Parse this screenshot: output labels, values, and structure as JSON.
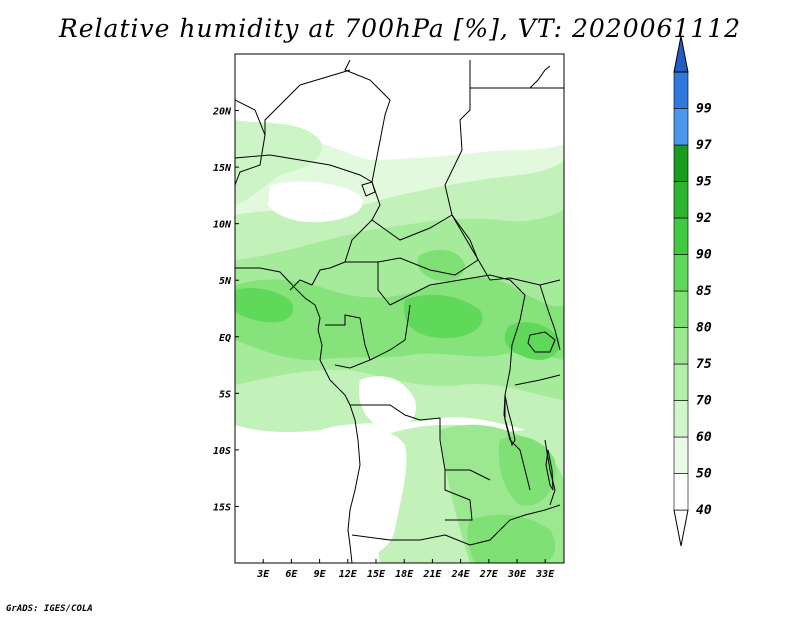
{
  "title": "Relative humidity at 700hPa [%], VT: 2020061112",
  "credit": "GrADS: IGES/COLA",
  "map": {
    "lon_range": [
      0,
      35
    ],
    "lat_range": [
      -20,
      25
    ],
    "lat_ticks": [
      {
        "value": 20,
        "label": "20N"
      },
      {
        "value": 15,
        "label": "15N"
      },
      {
        "value": 10,
        "label": "10N"
      },
      {
        "value": 5,
        "label": "5N"
      },
      {
        "value": 0,
        "label": "EQ"
      },
      {
        "value": -5,
        "label": "5S"
      },
      {
        "value": -10,
        "label": "10S"
      },
      {
        "value": -15,
        "label": "15S"
      }
    ],
    "lon_ticks": [
      {
        "value": 3,
        "label": "3E"
      },
      {
        "value": 6,
        "label": "6E"
      },
      {
        "value": 9,
        "label": "9E"
      },
      {
        "value": 12,
        "label": "12E"
      },
      {
        "value": 15,
        "label": "15E"
      },
      {
        "value": 18,
        "label": "18E"
      },
      {
        "value": 21,
        "label": "21E"
      },
      {
        "value": 24,
        "label": "24E"
      },
      {
        "value": 27,
        "label": "27E"
      },
      {
        "value": 30,
        "label": "30E"
      },
      {
        "value": 33,
        "label": "33E"
      }
    ]
  },
  "colorbar": {
    "levels": [
      {
        "label": "40",
        "color": "#ffffff"
      },
      {
        "label": "50",
        "color": "#e9fbe6"
      },
      {
        "label": "60",
        "color": "#d2f6cc"
      },
      {
        "label": "70",
        "color": "#b5f0ab"
      },
      {
        "label": "75",
        "color": "#9ce891"
      },
      {
        "label": "80",
        "color": "#7fe075"
      },
      {
        "label": "85",
        "color": "#5fd75a"
      },
      {
        "label": "90",
        "color": "#3fca42"
      },
      {
        "label": "92",
        "color": "#2bb52e"
      },
      {
        "label": "95",
        "color": "#189c1c"
      },
      {
        "label": "97",
        "color": "#4a97f0"
      },
      {
        "label": "99",
        "color": "#2f78dc"
      }
    ],
    "top_color": "#1f5fc6"
  }
}
